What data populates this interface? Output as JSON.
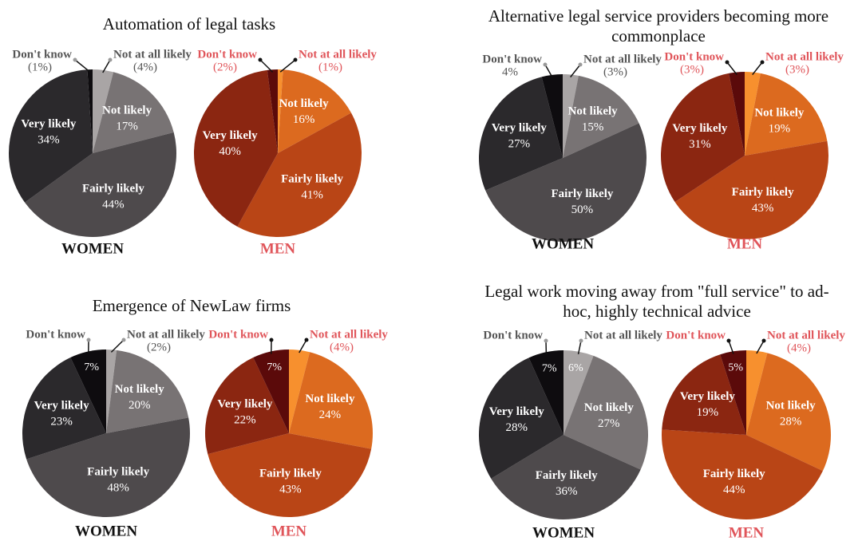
{
  "chart_data": [
    {
      "type": "pie",
      "title": "Automation of legal tasks",
      "categories": [
        "Not at all likely",
        "Not likely",
        "Fairly likely",
        "Very likely",
        "Don't know"
      ],
      "series": [
        {
          "name": "WOMEN",
          "colors": [
            "#a9a5a5",
            "#787374",
            "#4e4a4c",
            "#2b292c",
            "#0e0c0f"
          ],
          "values": [
            4,
            17,
            44,
            34,
            1
          ],
          "value_labels": [
            "(4%)",
            "17%",
            "44%",
            "34%",
            "(1%)"
          ]
        },
        {
          "name": "MEN",
          "colors": [
            "#f7902e",
            "#dc6a1f",
            "#b94516",
            "#8b2611",
            "#5b0a0a"
          ],
          "values": [
            1,
            16,
            41,
            40,
            2
          ],
          "value_labels": [
            "(1%)",
            "16%",
            "41%",
            "40%",
            "(2%)"
          ]
        }
      ]
    },
    {
      "type": "pie",
      "title": "Alternative legal service providers becoming more commonplace",
      "categories": [
        "Not at all likely",
        "Not likely",
        "Fairly likely",
        "Very likely",
        "Don't know"
      ],
      "series": [
        {
          "name": "WOMEN",
          "colors": [
            "#a9a5a5",
            "#787374",
            "#4e4a4c",
            "#2b292c",
            "#0e0c0f"
          ],
          "values": [
            3,
            15,
            50,
            27,
            4
          ],
          "value_labels": [
            "(3%)",
            "15%",
            "50%",
            "27%",
            "4%"
          ]
        },
        {
          "name": "MEN",
          "colors": [
            "#f7902e",
            "#dc6a1f",
            "#b94516",
            "#8b2611",
            "#5b0a0a"
          ],
          "values": [
            3,
            19,
            43,
            31,
            3
          ],
          "value_labels": [
            "(3%)",
            "19%",
            "43%",
            "31%",
            "(3%)"
          ]
        }
      ]
    },
    {
      "type": "pie",
      "title": "Emergence of NewLaw firms",
      "categories": [
        "Not at all likely",
        "Not likely",
        "Fairly likely",
        "Very likely",
        "Don't know"
      ],
      "series": [
        {
          "name": "WOMEN",
          "colors": [
            "#a9a5a5",
            "#787374",
            "#4e4a4c",
            "#2b292c",
            "#0e0c0f"
          ],
          "values": [
            2,
            20,
            48,
            23,
            7
          ],
          "value_labels": [
            "(2%)",
            "20%",
            "48%",
            "23%",
            "7%"
          ]
        },
        {
          "name": "MEN",
          "colors": [
            "#f7902e",
            "#dc6a1f",
            "#b94516",
            "#8b2611",
            "#5b0a0a"
          ],
          "values": [
            4,
            24,
            43,
            22,
            7
          ],
          "value_labels": [
            "(4%)",
            "24%",
            "43%",
            "22%",
            "7%"
          ]
        }
      ]
    },
    {
      "type": "pie",
      "title": "Legal work moving away from \"full service\" to ad-hoc, highly technical advice",
      "categories": [
        "Not at all likely",
        "Not likely",
        "Fairly likely",
        "Very likely",
        "Don't know"
      ],
      "series": [
        {
          "name": "WOMEN",
          "colors": [
            "#a9a5a5",
            "#787374",
            "#4e4a4c",
            "#2b292c",
            "#0e0c0f"
          ],
          "values": [
            6,
            27,
            36,
            28,
            7
          ],
          "value_labels": [
            "6%",
            "27%",
            "36%",
            "28%",
            "7%"
          ]
        },
        {
          "name": "MEN",
          "colors": [
            "#f7902e",
            "#dc6a1f",
            "#b94516",
            "#8b2611",
            "#5b0a0a"
          ],
          "values": [
            4,
            28,
            44,
            19,
            5
          ],
          "value_labels": [
            "(4%)",
            "28%",
            "44%",
            "19%",
            "5%"
          ]
        }
      ]
    }
  ]
}
